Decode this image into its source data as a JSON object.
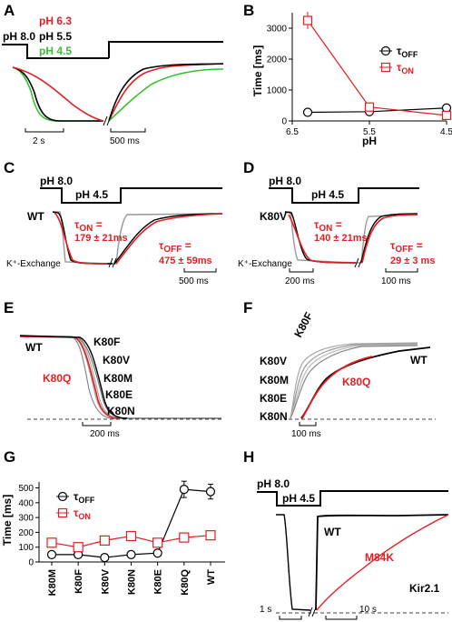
{
  "panels": {
    "A": {
      "label": "A",
      "ph_base": "pH 8.0",
      "ph_labels": [
        "pH 6.3",
        "pH 5.5",
        "pH 4.5"
      ],
      "ph_colors": [
        "#e31e24",
        "#000000",
        "#38c030"
      ],
      "scalebars": [
        "2 s",
        "500 ms"
      ]
    },
    "B": {
      "label": "B"
    },
    "C": {
      "label": "C",
      "ph_base": "pH 8.0",
      "ph_step": "pH 4.5",
      "trace": "WT",
      "exchange": "K⁺-Exchange",
      "tau_on_sym": "τ",
      "tau_on_sub": "ON",
      "tau_on_eq": " =",
      "tau_on_val": "179 ± 21ms",
      "tau_off_sym": "τ",
      "tau_off_sub": "OFF",
      "tau_off_eq": " =",
      "tau_off_val": "475 ± 59ms",
      "scalebar": "500 ms"
    },
    "D": {
      "label": "D",
      "ph_base": "pH 8.0",
      "ph_step": "pH 4.5",
      "trace": "K80V",
      "exchange": "K⁺-Exchange",
      "tau_on_sym": "τ",
      "tau_on_sub": "ON",
      "tau_on_eq": " =",
      "tau_on_val": "140 ± 21ms",
      "tau_off_sym": "τ",
      "tau_off_sub": "OFF",
      "tau_off_eq": " =",
      "tau_off_val": "29 ± 3 ms",
      "scalebars": [
        "200 ms",
        "100 ms"
      ]
    },
    "E": {
      "label": "E",
      "traces": [
        "WT",
        "K80F",
        "K80V",
        "K80M",
        "K80E",
        "K80N",
        "K80Q"
      ],
      "scalebar": "200 ms"
    },
    "F": {
      "label": "F",
      "traces": [
        "K80F",
        "K80V",
        "K80M",
        "K80E",
        "K80N",
        "K80Q",
        "WT"
      ],
      "scalebar": "100 ms"
    },
    "G": {
      "label": "G"
    },
    "H": {
      "label": "H",
      "ph_base": "pH 8.0",
      "ph_step": "pH 4.5",
      "traces": [
        "WT",
        "M84K"
      ],
      "channel": "Kir2.1",
      "scalebars": [
        "1 s",
        "10 s"
      ]
    }
  },
  "chart_data": [
    {
      "panel": "B",
      "type": "line",
      "xlabel": "pH",
      "ylabel": "Time [ms]",
      "x": [
        6.3,
        5.5,
        4.5
      ],
      "x_ticks": [
        "6.5",
        "5.5",
        "4.5"
      ],
      "xlim": [
        6.5,
        4.5
      ],
      "ylim": [
        0,
        3500
      ],
      "y_ticks": [
        "0",
        "1000",
        "2000",
        "3000"
      ],
      "legend_position": "right",
      "series": [
        {
          "name_sym": "τ",
          "name_sub": "OFF",
          "values": [
            280,
            300,
            420
          ],
          "errors": [
            30,
            30,
            60
          ],
          "color": "#000000",
          "marker": "circle"
        },
        {
          "name_sym": "τ",
          "name_sub": "ON",
          "values": [
            3250,
            450,
            180
          ],
          "errors": [
            280,
            60,
            40
          ],
          "color": "#e31e24",
          "marker": "square"
        }
      ]
    },
    {
      "panel": "G",
      "type": "line",
      "xlabel": "",
      "ylabel": "Time [ms]",
      "categories": [
        "K80M",
        "K80F",
        "K80V",
        "K80N",
        "K80E",
        "K80Q",
        "WT"
      ],
      "ylim": [
        0,
        540
      ],
      "y_ticks": [
        "0",
        "100",
        "200",
        "300",
        "400",
        "500"
      ],
      "legend_position": "top-left",
      "series": [
        {
          "name_sym": "τ",
          "name_sub": "OFF",
          "values": [
            50,
            50,
            30,
            50,
            60,
            490,
            475
          ],
          "errors": [
            10,
            10,
            5,
            5,
            10,
            55,
            50
          ],
          "color": "#000000",
          "marker": "circle"
        },
        {
          "name_sym": "τ",
          "name_sub": "ON",
          "values": [
            130,
            100,
            145,
            175,
            130,
            165,
            180
          ],
          "errors": [
            30,
            25,
            20,
            20,
            25,
            30,
            25
          ],
          "color": "#e31e24",
          "marker": "square"
        }
      ]
    }
  ]
}
